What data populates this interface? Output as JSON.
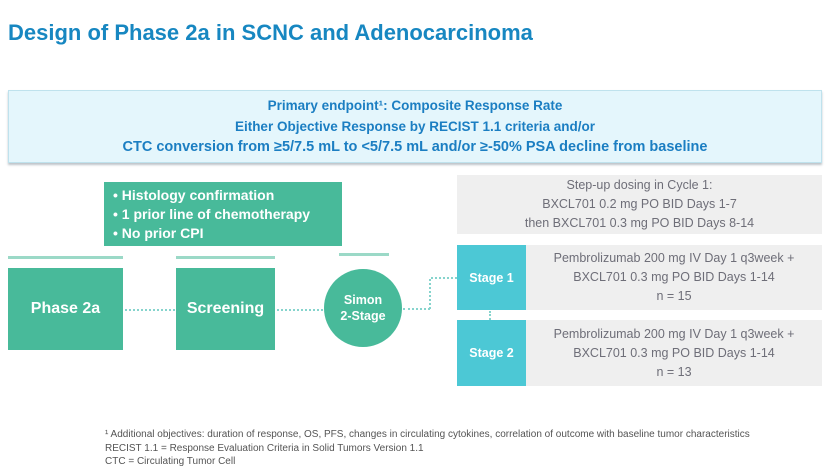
{
  "title": "Design of Phase 2a in SCNC and Adenocarcinoma",
  "endpoint_box": {
    "line1": "Primary endpoint¹: Composite Response Rate",
    "line2": "Either Objective Response by RECIST 1.1 criteria and/or",
    "line3": "CTC conversion from ≥5/7.5 mL to <5/7.5 mL and/or ≥-50% PSA decline from baseline"
  },
  "eligibility": {
    "items": [
      "Histology confirmation",
      "1 prior line of chemotherapy",
      "No prior CPI"
    ]
  },
  "stepup_box": {
    "line1": "Step-up dosing in Cycle 1:",
    "line2": "BXCL701 0.2 mg PO BID Days 1-7",
    "line3": "then BXCL701 0.3 mg PO BID Days 8-14"
  },
  "flow": {
    "phase_label": "Phase 2a",
    "screening_label": "Screening",
    "simon_line1": "Simon",
    "simon_line2": "2-Stage"
  },
  "stages": [
    {
      "label": "Stage 1",
      "line1": "Pembrolizumab 200 mg IV Day 1 q3week +",
      "line2": "BXCL701 0.3 mg PO BID Days 1-14",
      "n": "n = 15"
    },
    {
      "label": "Stage 2",
      "line1": "Pembrolizumab 200 mg IV Day 1 q3week +",
      "line2": "BXCL701 0.3 mg PO BID Days 1-14",
      "n": "n = 13"
    }
  ],
  "footnotes": [
    "¹ Additional objectives: duration of response, OS, PFS, changes in circulating cytokines, correlation of outcome with baseline tumor characteristics",
    "RECIST 1.1 = Response Evaluation Criteria in Solid Tumors Version 1.1",
    "CTC = Circulating Tumor Cell"
  ],
  "colors": {
    "title_blue": "#1787C1",
    "endpoint_bg": "#E4F6FC",
    "endpoint_border": "#BFE2ED",
    "endpoint_text": "#1B7EC2",
    "green": "#48BA9A",
    "green_light": "#9BD9C7",
    "cyan": "#4CC8D5",
    "gray_bg": "#EFEFEF",
    "gray_text": "#6E6E78",
    "footnote": "#545454",
    "dotted": "#86D4CD"
  }
}
